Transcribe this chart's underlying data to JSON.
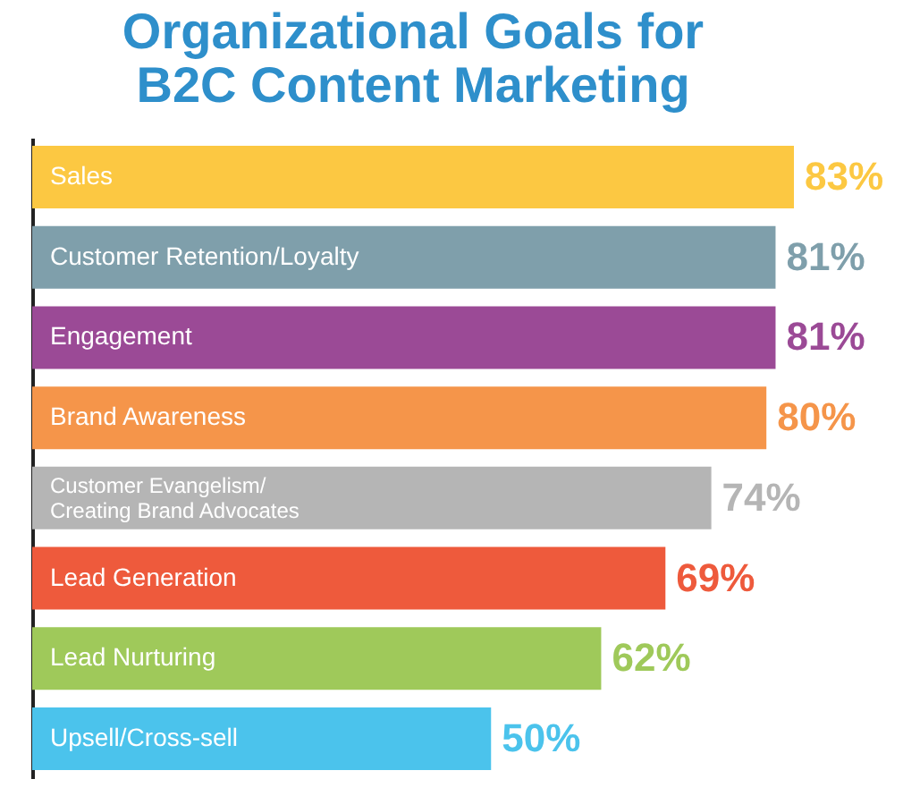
{
  "chart_data": {
    "type": "bar",
    "orientation": "horizontal",
    "title": [
      "Organizational Goals for",
      "B2C Content Marketing"
    ],
    "categories": [
      "Sales",
      "Customer Retention/Loyalty",
      "Engagement",
      "Brand Awareness",
      "Customer Evangelism/\nCreating Brand Advocates",
      "Lead Generation",
      "Lead Nurturing",
      "Upsell/Cross-sell"
    ],
    "values": [
      83,
      81,
      81,
      80,
      74,
      69,
      62,
      50
    ],
    "colors": [
      "#fcc842",
      "#7f9fab",
      "#9b4a96",
      "#f5954a",
      "#b5b5b5",
      "#ee5a3c",
      "#9fc95a",
      "#4bc3ec"
    ],
    "value_labels": [
      "83%",
      "81%",
      "81%",
      "80%",
      "74%",
      "69%",
      "62%",
      "50%"
    ],
    "tick_labels": false,
    "grid": false
  }
}
